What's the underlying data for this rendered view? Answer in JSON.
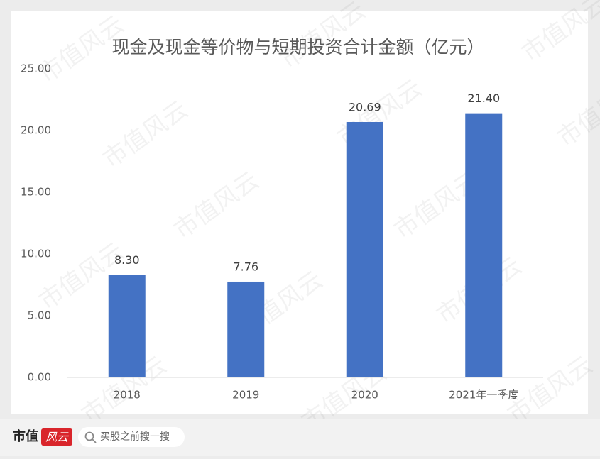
{
  "chart_data": {
    "type": "bar",
    "title": "现金及现金等价物与短期投资合计金额（亿元）",
    "categories": [
      "2018",
      "2019",
      "2020",
      "2021年一季度"
    ],
    "values": [
      8.3,
      7.76,
      20.69,
      21.4
    ],
    "value_labels": [
      "8.30",
      "7.76",
      "20.69",
      "21.40"
    ],
    "color": "#4472c4",
    "ylim": [
      0,
      25
    ],
    "yticks": [
      {
        "value": 0,
        "label": "0.00"
      },
      {
        "value": 5,
        "label": "5.00"
      },
      {
        "value": 10,
        "label": "10.00"
      },
      {
        "value": 15,
        "label": "15.00"
      },
      {
        "value": 20,
        "label": "20.00"
      },
      {
        "value": 25,
        "label": "25.00"
      }
    ],
    "grid": false
  },
  "watermark": "市值风云",
  "footer": {
    "brand": "市值",
    "brand_mark": "风云",
    "search": "买股之前搜一搜"
  }
}
